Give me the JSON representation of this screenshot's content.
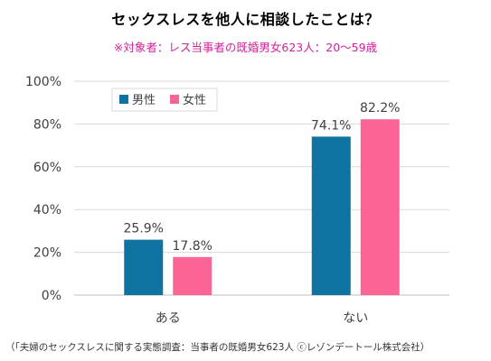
{
  "title": "セックスレスを他人に相談したことは？",
  "subtitle": "※対象者：レス当事者の既婚男女623人：20～59歳",
  "footnote": "（「夫婦のセックスレスに関する実態調査：当事者の既婚男女623人 ⓒレゾンデートール株式会社）",
  "chart_data": {
    "type": "bar",
    "categories": [
      "ある",
      "ない"
    ],
    "series": [
      {
        "name": "男性",
        "values": [
          25.9,
          74.1
        ],
        "labels": [
          "25.9%",
          "74.1%"
        ],
        "color": "#0e73a0"
      },
      {
        "name": "女性",
        "values": [
          17.8,
          82.2
        ],
        "labels": [
          "17.8%",
          "82.2%"
        ],
        "color": "#fb6495"
      }
    ],
    "yticks": [
      "0%",
      "20%",
      "40%",
      "60%",
      "80%",
      "100%"
    ],
    "ylim": [
      0,
      100
    ],
    "grid": true,
    "legend_position": "top-left"
  }
}
